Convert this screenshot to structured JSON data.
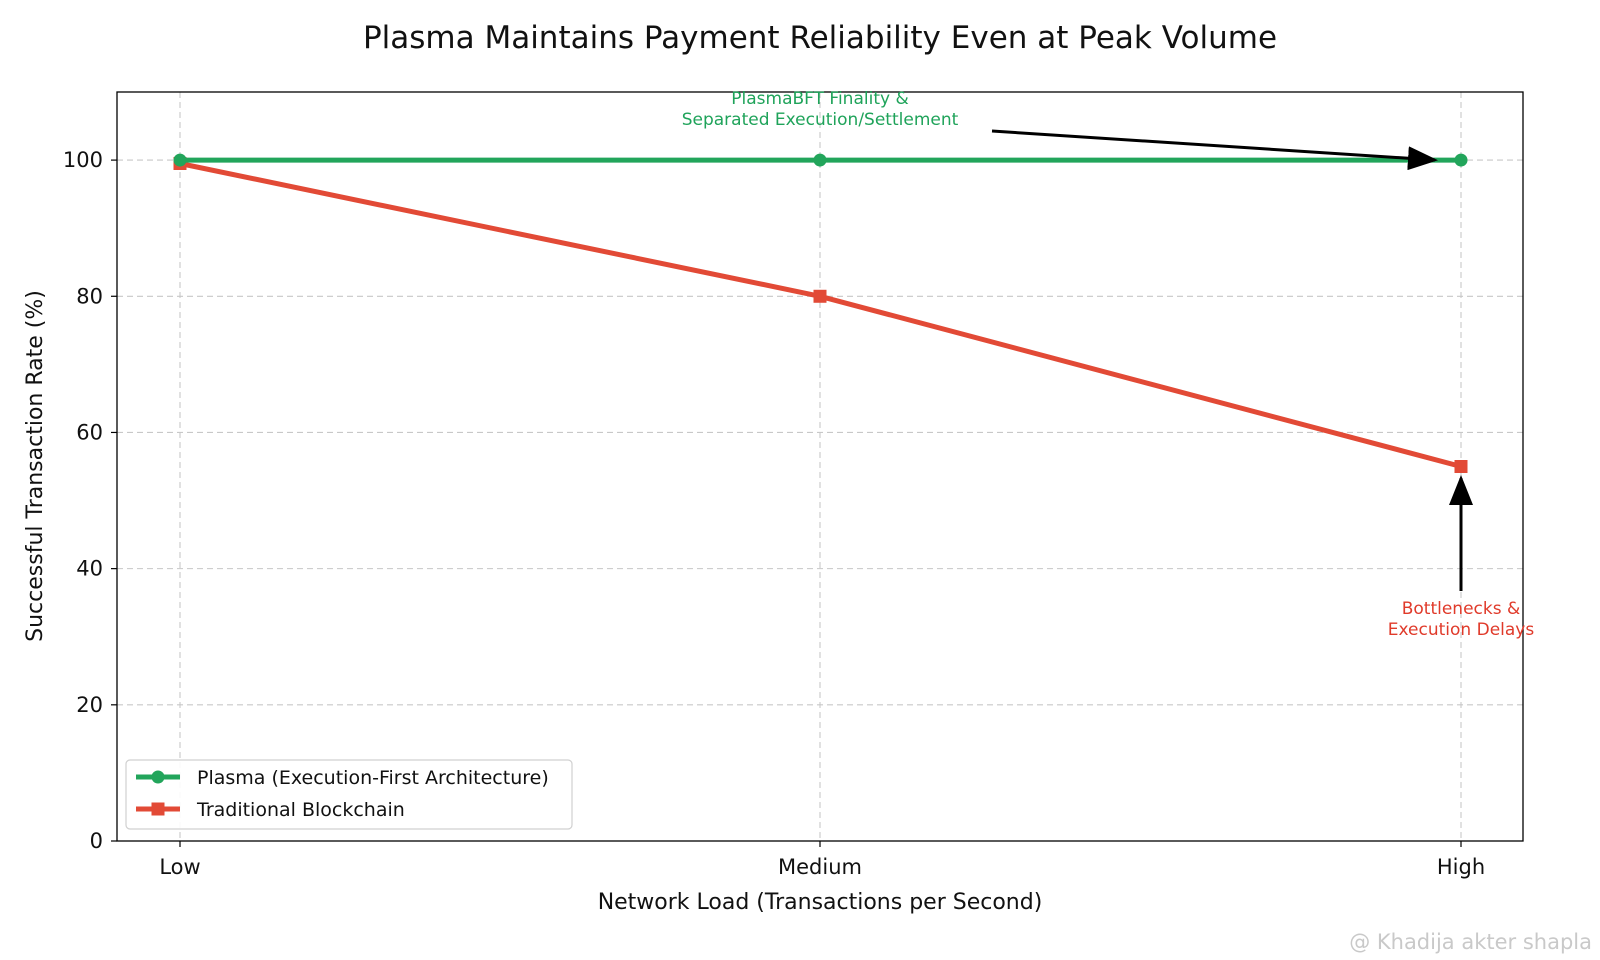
{
  "chart_data": {
    "type": "line",
    "title": "Plasma Maintains Payment Reliability Even at Peak Volume",
    "xlabel": "Network Load (Transactions per Second)",
    "ylabel": "Successful Transaction Rate (%)",
    "categories": [
      "Low",
      "Medium",
      "High"
    ],
    "ylim": [
      0,
      110
    ],
    "yticks": [
      "0",
      "20",
      "40",
      "60",
      "80",
      "100"
    ],
    "grid": true,
    "legend_position": "bottom-left",
    "series": [
      {
        "name": "Plasma (Execution-First Architecture)",
        "values": [
          100,
          100,
          100
        ],
        "color": "#22a55b",
        "marker": "circle"
      },
      {
        "name": "Traditional Blockchain",
        "values": [
          99.5,
          80,
          55
        ],
        "color": "#e24a36",
        "marker": "square"
      }
    ],
    "annotations": [
      {
        "lines": [
          "PlasmaBFT Finality &",
          "Separated Execution/Settlement"
        ],
        "target_series": 0,
        "target_category": "High",
        "color": "#1fa35a"
      },
      {
        "lines": [
          "Bottlenecks &",
          "Execution Delays"
        ],
        "target_series": 1,
        "target_category": "High",
        "color": "#e03a2a"
      }
    ]
  },
  "watermark": "@ Khadija akter shapla"
}
